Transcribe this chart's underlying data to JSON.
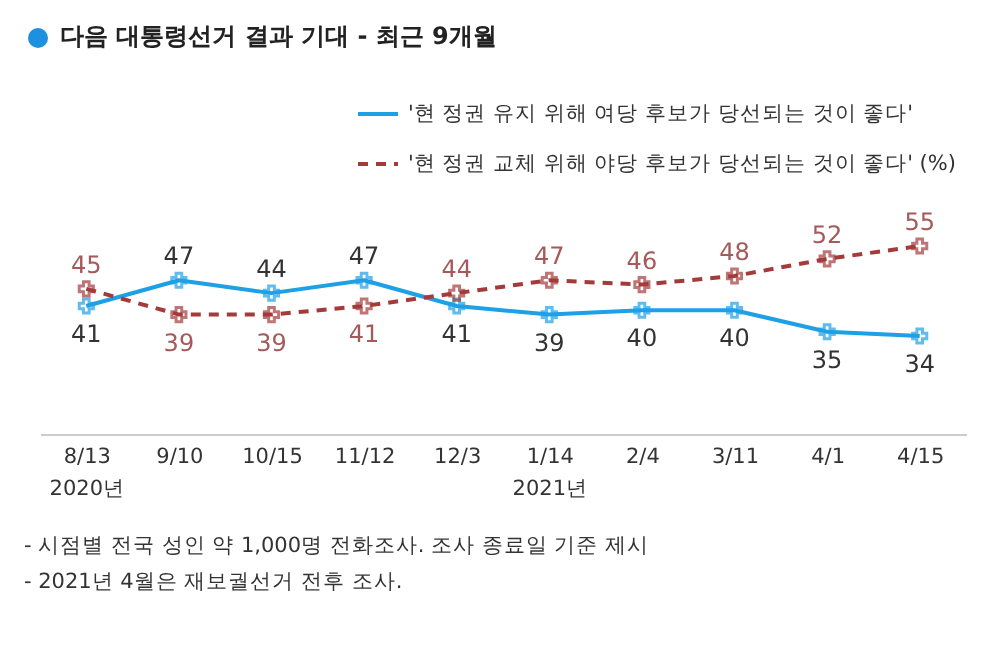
{
  "chart_data": {
    "type": "line",
    "title": "다음 대통령선거 결과 기대 - 최근 9개월",
    "categories": [
      "8/13\n2020년",
      "9/10",
      "10/15",
      "11/12",
      "12/3",
      "1/14\n2021년",
      "2/4",
      "3/11",
      "4/1",
      "4/15"
    ],
    "series": [
      {
        "name": "'현 정권 유지 위해 여당 후보가 당선되는 것이 좋다'",
        "color": "#1ea0e6",
        "line_style": "solid",
        "values": [
          41,
          47,
          44,
          47,
          41,
          39,
          40,
          40,
          35,
          34
        ]
      },
      {
        "name": "'현 정권 교체 위해 야당 후보가 당선되는 것이 좋다' (%)",
        "color": "#a33b3b",
        "line_style": "dashed",
        "values": [
          45,
          39,
          39,
          41,
          44,
          47,
          46,
          48,
          52,
          55
        ]
      }
    ],
    "marker": "cross",
    "data_labels": true,
    "legend": "top right",
    "grid": false,
    "annotations": [
      "- 시점별 전국 성인 약 1,000명 전화조사. 조사 종료일 기준 제시",
      "- 2021년 4월은 재보궐선거 전후 조사."
    ]
  }
}
